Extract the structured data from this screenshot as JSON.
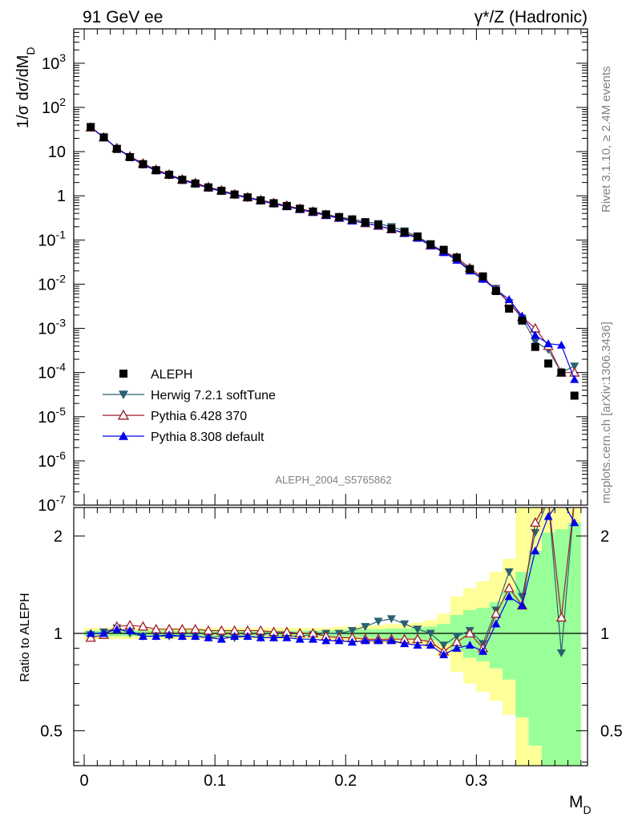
{
  "header": {
    "left": "91 GeV ee",
    "right": "γ*/Z (Hadronic)"
  },
  "side": {
    "rivet": "Rivet 3.1.10, ≥ 2.4M events",
    "mcplots": "mcplots.cern.ch [arXiv:1306.3436]"
  },
  "watermark": "ALEPH_2004_S5765862",
  "ratio_ylabel": "Ratio to ALEPH",
  "colors": {
    "aleph": "#000000",
    "herwig": "#2a6072",
    "pythia6": "#9c1a2a",
    "pythia8": "#0000ee",
    "band_yellow": "#ffff99",
    "band_green": "#99ff99"
  },
  "chart_data": [
    {
      "type": "scatter",
      "panel": "main",
      "ylabel": "1/σ dσ/dM_D",
      "xlabel": "",
      "log_y": true,
      "xlim": [
        -0.008,
        0.385
      ],
      "ylim": [
        1e-07,
        6000
      ],
      "y_tick_labels": [
        "10^-7",
        "10^-6",
        "10^-5",
        "10^-4",
        "10^-3",
        "10^-2",
        "10^-1",
        "1",
        "10",
        "10^2",
        "10^3"
      ],
      "legend": {
        "position": "bottom-left"
      },
      "x": [
        0.005,
        0.015,
        0.025,
        0.035,
        0.045,
        0.055,
        0.065,
        0.075,
        0.085,
        0.095,
        0.105,
        0.115,
        0.125,
        0.135,
        0.145,
        0.155,
        0.165,
        0.175,
        0.185,
        0.195,
        0.205,
        0.215,
        0.225,
        0.235,
        0.245,
        0.255,
        0.265,
        0.275,
        0.285,
        0.295,
        0.305,
        0.315,
        0.325,
        0.335,
        0.345,
        0.355,
        0.365,
        0.375
      ],
      "series": [
        {
          "name": "ALEPH",
          "marker": "square",
          "values": [
            36,
            21,
            11.5,
            7.5,
            5.2,
            3.8,
            3.0,
            2.3,
            1.9,
            1.55,
            1.3,
            1.07,
            0.92,
            0.79,
            0.68,
            0.59,
            0.51,
            0.44,
            0.38,
            0.33,
            0.29,
            0.25,
            0.22,
            0.18,
            0.15,
            0.12,
            0.08,
            0.06,
            0.04,
            0.022,
            0.015,
            0.007,
            0.0028,
            0.0015,
            0.00038,
            0.00016,
            0.0001,
            3e-05
          ]
        },
        {
          "name": "Herwig 7.2.1 softTune",
          "marker": "triangle-down",
          "values": [
            36,
            21,
            11.8,
            7.6,
            5.1,
            3.7,
            2.9,
            2.25,
            1.87,
            1.5,
            1.28,
            1.04,
            0.9,
            0.77,
            0.66,
            0.58,
            0.5,
            0.44,
            0.38,
            0.33,
            0.3,
            0.26,
            0.235,
            0.2,
            0.16,
            0.12,
            0.08,
            0.055,
            0.037,
            0.021,
            0.013,
            0.008,
            0.0038,
            0.0017,
            0.0005,
            0.00033,
            0.0001,
            0.00014
          ]
        },
        {
          "name": "Pythia 6.428 370",
          "marker": "triangle-up-open",
          "values": [
            35,
            21,
            12,
            7.8,
            5.4,
            3.9,
            3.05,
            2.35,
            1.95,
            1.58,
            1.33,
            1.08,
            0.93,
            0.8,
            0.69,
            0.6,
            0.51,
            0.44,
            0.37,
            0.32,
            0.28,
            0.24,
            0.21,
            0.175,
            0.145,
            0.115,
            0.075,
            0.055,
            0.04,
            0.023,
            0.014,
            0.0075,
            0.0038,
            0.0018,
            0.001,
            0.0004,
            0.0001,
            0.0001
          ]
        },
        {
          "name": "Pythia 8.308 default",
          "marker": "triangle-up",
          "values": [
            36,
            21,
            11.8,
            7.6,
            5.1,
            3.7,
            2.95,
            2.25,
            1.87,
            1.5,
            1.27,
            1.05,
            0.91,
            0.77,
            0.66,
            0.57,
            0.49,
            0.42,
            0.36,
            0.31,
            0.27,
            0.24,
            0.21,
            0.175,
            0.14,
            0.11,
            0.075,
            0.052,
            0.035,
            0.02,
            0.013,
            0.0075,
            0.0045,
            0.0019,
            0.0007,
            0.00045,
            0.00042,
            7e-05
          ]
        }
      ]
    },
    {
      "type": "scatter",
      "panel": "ratio",
      "ylabel": "Ratio to ALEPH",
      "xlabel": "M_D",
      "log_y": true,
      "xlim": [
        -0.008,
        0.385
      ],
      "ylim": [
        0.39,
        2.45
      ],
      "y_ticks": [
        0.5,
        1,
        2
      ],
      "x_ticks": [
        0,
        0.1,
        0.2,
        0.3
      ],
      "x": [
        0.005,
        0.015,
        0.025,
        0.035,
        0.045,
        0.055,
        0.065,
        0.075,
        0.085,
        0.095,
        0.105,
        0.115,
        0.125,
        0.135,
        0.145,
        0.155,
        0.165,
        0.175,
        0.185,
        0.195,
        0.205,
        0.215,
        0.225,
        0.235,
        0.245,
        0.255,
        0.265,
        0.275,
        0.285,
        0.295,
        0.305,
        0.315,
        0.325,
        0.335,
        0.345,
        0.355,
        0.365,
        0.375
      ],
      "band_yellow": {
        "lo": [
          0.96,
          0.96,
          0.96,
          0.96,
          0.96,
          0.96,
          0.96,
          0.96,
          0.96,
          0.96,
          0.96,
          0.96,
          0.96,
          0.96,
          0.96,
          0.96,
          0.96,
          0.96,
          0.96,
          0.95,
          0.95,
          0.94,
          0.94,
          0.93,
          0.93,
          0.92,
          0.9,
          0.85,
          0.76,
          0.7,
          0.66,
          0.62,
          0.56,
          0.31,
          0.31,
          0.31,
          0.31,
          0.31
        ],
        "hi": [
          1.04,
          1.04,
          1.04,
          1.04,
          1.04,
          1.04,
          1.04,
          1.04,
          1.04,
          1.04,
          1.04,
          1.04,
          1.04,
          1.04,
          1.04,
          1.04,
          1.04,
          1.04,
          1.04,
          1.05,
          1.05,
          1.06,
          1.06,
          1.07,
          1.07,
          1.08,
          1.1,
          1.15,
          1.3,
          1.38,
          1.45,
          1.55,
          1.7,
          2.45,
          2.45,
          2.45,
          2.45,
          2.45
        ]
      },
      "band_green": {
        "lo": [
          0.98,
          0.98,
          0.98,
          0.98,
          0.98,
          0.98,
          0.98,
          0.98,
          0.98,
          0.98,
          0.98,
          0.98,
          0.98,
          0.98,
          0.98,
          0.98,
          0.98,
          0.98,
          0.98,
          0.975,
          0.975,
          0.97,
          0.97,
          0.965,
          0.965,
          0.96,
          0.95,
          0.93,
          0.88,
          0.84,
          0.82,
          0.78,
          0.72,
          0.55,
          0.45,
          0.35,
          0.31,
          0.31
        ],
        "hi": [
          1.02,
          1.02,
          1.02,
          1.02,
          1.02,
          1.02,
          1.02,
          1.02,
          1.02,
          1.02,
          1.02,
          1.02,
          1.02,
          1.02,
          1.02,
          1.02,
          1.02,
          1.02,
          1.02,
          1.025,
          1.025,
          1.03,
          1.03,
          1.035,
          1.035,
          1.04,
          1.05,
          1.07,
          1.14,
          1.18,
          1.2,
          1.25,
          1.35,
          1.55,
          1.8,
          2.05,
          2.1,
          2.2
        ]
      },
      "series": [
        {
          "name": "Herwig 7.2.1 softTune",
          "values": [
            0.99,
            1.01,
            1.04,
            1.0,
            0.98,
            0.98,
            0.98,
            0.98,
            0.98,
            0.97,
            0.98,
            0.97,
            0.98,
            0.97,
            0.97,
            0.98,
            0.98,
            0.99,
            1.0,
            1.0,
            1.02,
            1.05,
            1.09,
            1.11,
            1.07,
            1.03,
            1.0,
            0.92,
            0.98,
            1.02,
            0.93,
            1.18,
            1.55,
            1.3,
            2.05,
            2.6,
            0.87,
            2.6
          ]
        },
        {
          "name": "Pythia 6.428 370",
          "values": [
            0.97,
            0.99,
            1.05,
            1.06,
            1.05,
            1.03,
            1.03,
            1.03,
            1.03,
            1.02,
            1.02,
            1.02,
            1.02,
            1.02,
            1.01,
            1.01,
            1.0,
            1.0,
            0.98,
            0.97,
            0.97,
            0.96,
            0.96,
            0.96,
            0.96,
            0.96,
            0.94,
            0.88,
            0.94,
            1.0,
            0.9,
            1.15,
            1.38,
            1.22,
            2.2,
            2.6,
            1.12,
            2.6
          ]
        },
        {
          "name": "Pythia 8.308 default",
          "values": [
            1.0,
            1.0,
            1.03,
            1.02,
            0.98,
            0.98,
            0.99,
            0.98,
            0.98,
            0.97,
            0.96,
            0.98,
            0.98,
            0.97,
            0.97,
            0.97,
            0.96,
            0.96,
            0.95,
            0.95,
            0.94,
            0.95,
            0.95,
            0.95,
            0.93,
            0.92,
            0.92,
            0.86,
            0.9,
            0.92,
            0.88,
            1.07,
            1.3,
            1.22,
            1.8,
            2.3,
            2.6,
            2.2
          ]
        }
      ]
    }
  ],
  "legend": [
    "ALEPH",
    "Herwig 7.2.1 softTune",
    "Pythia 6.428 370",
    "Pythia 8.308 default"
  ]
}
